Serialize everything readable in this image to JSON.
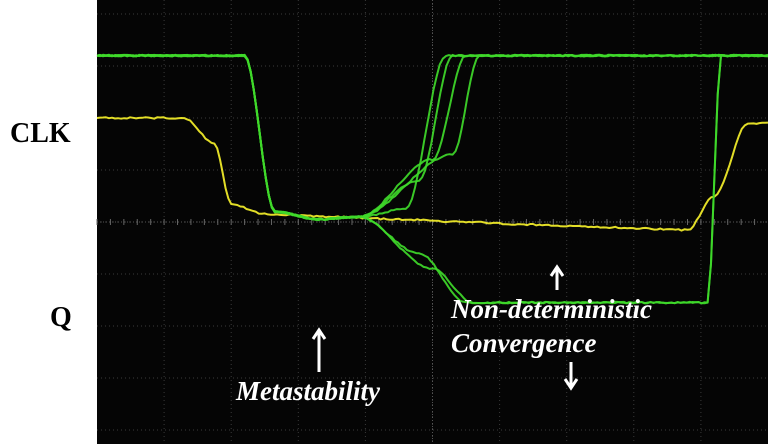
{
  "chart_data": {
    "type": "line",
    "grid": true,
    "signals": [
      "CLK",
      "Q"
    ],
    "annotations": {
      "metastability": "Metastability",
      "convergence_line1": "Non-deterministic",
      "convergence_line2": "Convergence"
    },
    "series": [
      {
        "name": "CLK",
        "color": "#f5f02a",
        "x": [
          0,
          1.3,
          1.75,
          2.0,
          2.5,
          3.5,
          4.5,
          5.5,
          6.5,
          7.5,
          8.8,
          9.2,
          9.7,
          10
        ],
        "values": [
          2.0,
          2.0,
          1.5,
          0.35,
          0.15,
          0.1,
          0.05,
          0.0,
          -0.05,
          -0.1,
          -0.15,
          0.5,
          1.9,
          1.9
        ]
      },
      {
        "name": "Q",
        "color": "#3fd92a",
        "traces": [
          {
            "x": [
              0,
              2.2,
              2.65,
              3.3,
              3.9,
              4.6,
              5.2,
              9.8,
              10
            ],
            "values": [
              3.2,
              3.2,
              0.2,
              0.05,
              0.1,
              0.25,
              3.2,
              3.2,
              3.2
            ]
          },
          {
            "x": [
              0,
              2.2,
              2.65,
              3.3,
              3.9,
              4.8,
              5.3,
              9.8,
              10
            ],
            "values": [
              3.2,
              3.2,
              0.2,
              0.05,
              0.1,
              0.8,
              3.2,
              3.2,
              3.2
            ]
          },
          {
            "x": [
              0,
              2.2,
              2.65,
              3.3,
              3.9,
              5.0,
              5.5,
              9.8,
              10
            ],
            "values": [
              3.2,
              3.2,
              0.2,
              0.05,
              0.1,
              1.2,
              3.2,
              3.2,
              3.2
            ]
          },
          {
            "x": [
              0,
              2.2,
              2.65,
              3.3,
              3.9,
              5.3,
              5.7,
              9.8,
              10
            ],
            "values": [
              3.2,
              3.2,
              0.2,
              0.05,
              0.1,
              1.3,
              3.2,
              3.2,
              3.2
            ]
          },
          {
            "x": [
              0,
              2.2,
              2.65,
              3.3,
              3.9,
              4.8,
              5.5,
              9.1,
              9.3,
              9.8,
              10
            ],
            "values": [
              3.2,
              3.2,
              0.2,
              0.05,
              0.1,
              -0.6,
              -1.55,
              -1.55,
              3.2,
              3.2,
              3.2
            ]
          },
          {
            "x": [
              0,
              2.2,
              2.65,
              3.3,
              3.9,
              5.0,
              5.6,
              9.1,
              9.3,
              9.8,
              10
            ],
            "values": [
              3.2,
              3.2,
              0.2,
              0.05,
              0.1,
              -0.9,
              -1.55,
              -1.55,
              3.2,
              3.2,
              3.2
            ]
          }
        ]
      }
    ]
  }
}
